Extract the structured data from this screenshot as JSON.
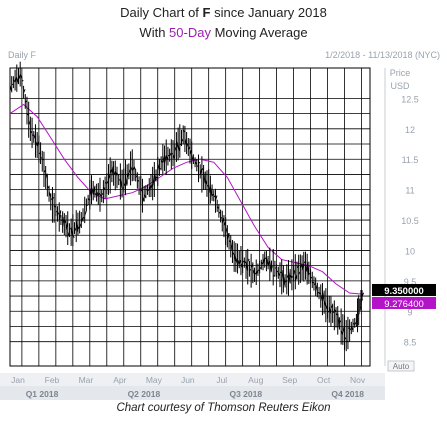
{
  "title": {
    "prefix": "Daily Chart of ",
    "ticker": "F",
    "suffix": " since January 2018",
    "line2_prefix": "With ",
    "line2_highlight": "50-Day",
    "line2_suffix": " Moving Average"
  },
  "footer": "Chart courtesy of Thomson Reuters Eikon",
  "chart_data": {
    "type": "line",
    "header_left": "Daily F",
    "date_range": "1/2/2018 - 11/13/2018 (NYC)",
    "price_label": "Price",
    "currency_label": "USD",
    "auto_label": "Auto",
    "y_ticks": [
      "12.5",
      "12",
      "11.5",
      "11",
      "10.5",
      "10",
      "9.5",
      "9",
      "8.5"
    ],
    "ylim": [
      8.1,
      13.0
    ],
    "x_months": [
      "Jan",
      "Feb",
      "Mar",
      "Apr",
      "May",
      "Jun",
      "Jul",
      "Aug",
      "Sep",
      "Oct",
      "Nov"
    ],
    "x_quarters": [
      "Q1 2018",
      "Q2 2018",
      "Q3 2018",
      "Q4 2018"
    ],
    "last_price_label": "9.350000",
    "ma_label": "9.276400",
    "colors": {
      "price": "#000000",
      "moving_average": "#b414c8",
      "last_price_box": "#000000",
      "ma_box": "#b414c8"
    },
    "series": [
      {
        "name": "Daily F",
        "style": "ohlc",
        "x": [
          0,
          0.3,
          0.6,
          0.9,
          1.2,
          1.5,
          1.8,
          2.1,
          2.4,
          2.7,
          3.0,
          3.3,
          3.6,
          3.9,
          4.2,
          4.5,
          4.8,
          5.1,
          5.4,
          5.7,
          6.0,
          6.3,
          6.6,
          6.9,
          7.2,
          7.5,
          7.8,
          8.1,
          8.4,
          8.7,
          9.0,
          9.3,
          9.6,
          9.9,
          10.2,
          10.4
        ],
        "y": [
          12.7,
          12.9,
          12.0,
          11.6,
          10.8,
          10.5,
          10.3,
          10.5,
          11.0,
          10.9,
          11.3,
          11.1,
          11.4,
          10.9,
          11.1,
          11.5,
          11.6,
          11.9,
          11.5,
          11.2,
          10.9,
          10.4,
          9.9,
          9.8,
          9.6,
          9.85,
          9.7,
          9.5,
          9.65,
          9.75,
          9.4,
          9.1,
          8.9,
          8.6,
          8.85,
          9.35
        ]
      },
      {
        "name": "50-Day Moving Average",
        "style": "line",
        "x": [
          0,
          0.4,
          0.8,
          1.2,
          1.6,
          2.0,
          2.4,
          2.8,
          3.2,
          3.6,
          4.0,
          4.4,
          4.8,
          5.2,
          5.6,
          6.0,
          6.4,
          6.8,
          7.2,
          7.6,
          8.0,
          8.4,
          8.8,
          9.2,
          9.6,
          10.0,
          10.4
        ],
        "y": [
          12.25,
          12.4,
          12.2,
          11.85,
          11.5,
          11.2,
          10.95,
          10.85,
          10.9,
          10.95,
          11.05,
          11.2,
          11.35,
          11.45,
          11.5,
          11.45,
          11.2,
          10.8,
          10.4,
          10.05,
          9.85,
          9.8,
          9.75,
          9.65,
          9.45,
          9.3,
          9.28
        ]
      }
    ]
  }
}
